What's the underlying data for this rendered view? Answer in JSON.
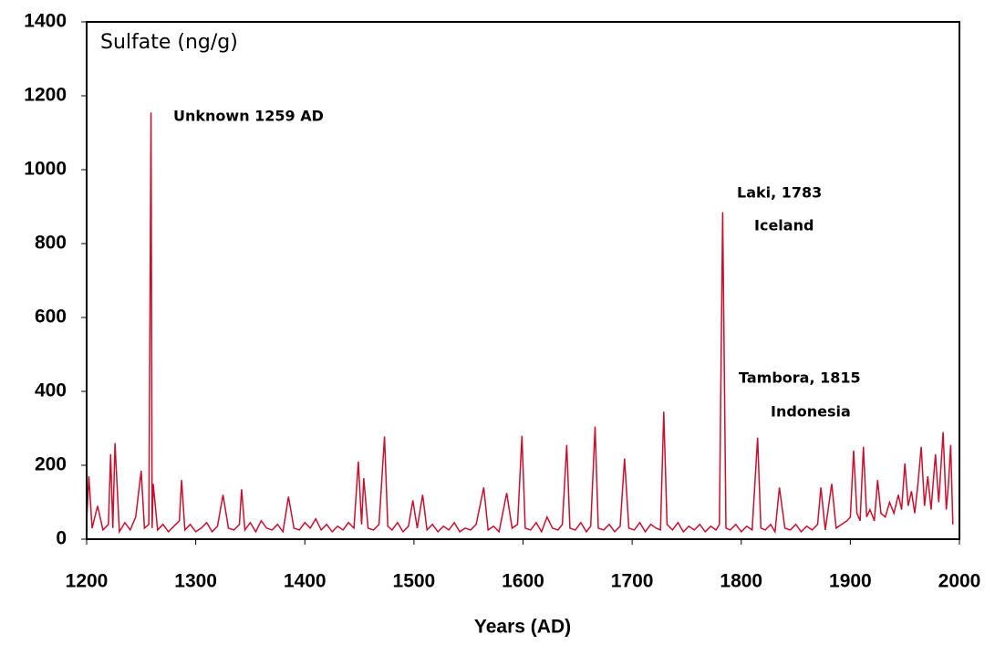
{
  "chart_data": {
    "type": "line",
    "x_label": "Years (AD)",
    "y_label": "Sulfate (ng/g)",
    "annotations": [
      "Unknown 1259 AD",
      "Laki, 1783",
      "Iceland",
      "Tambora, 1815",
      "Indonesia"
    ],
    "xlim": [
      1200,
      2000
    ],
    "xticks": [
      1200,
      1300,
      1400,
      1500,
      1600,
      1700,
      1800,
      1900,
      2000
    ],
    "ylim": [
      0,
      1400
    ],
    "yticks": [
      0,
      200,
      400,
      600,
      800,
      1000,
      1200,
      1400
    ],
    "grid": false,
    "x": [
      1200,
      1202,
      1205,
      1210,
      1215,
      1220,
      1222,
      1224,
      1226,
      1230,
      1235,
      1240,
      1245,
      1250,
      1253,
      1257,
      1259,
      1260,
      1261,
      1265,
      1270,
      1275,
      1280,
      1285,
      1287,
      1290,
      1295,
      1300,
      1305,
      1310,
      1315,
      1320,
      1325,
      1330,
      1335,
      1340,
      1342,
      1345,
      1350,
      1355,
      1360,
      1365,
      1370,
      1375,
      1380,
      1385,
      1390,
      1395,
      1400,
      1405,
      1410,
      1415,
      1420,
      1425,
      1430,
      1435,
      1440,
      1445,
      1449,
      1452,
      1454,
      1458,
      1463,
      1468,
      1473,
      1476,
      1480,
      1485,
      1490,
      1495,
      1499,
      1503,
      1508,
      1512,
      1517,
      1522,
      1527,
      1532,
      1537,
      1542,
      1547,
      1552,
      1557,
      1564,
      1568,
      1573,
      1578,
      1585,
      1590,
      1595,
      1599,
      1602,
      1607,
      1612,
      1617,
      1622,
      1627,
      1632,
      1636,
      1640,
      1643,
      1648,
      1653,
      1658,
      1662,
      1666,
      1669,
      1674,
      1679,
      1684,
      1689,
      1693,
      1697,
      1702,
      1707,
      1712,
      1717,
      1722,
      1726,
      1729,
      1732,
      1737,
      1742,
      1747,
      1752,
      1757,
      1762,
      1767,
      1772,
      1777,
      1780,
      1783,
      1786,
      1790,
      1795,
      1800,
      1805,
      1810,
      1815,
      1818,
      1822,
      1827,
      1831,
      1835,
      1840,
      1845,
      1850,
      1855,
      1860,
      1865,
      1870,
      1873,
      1877,
      1883,
      1887,
      1892,
      1897,
      1900,
      1903,
      1906,
      1909,
      1912,
      1915,
      1918,
      1922,
      1925,
      1928,
      1932,
      1936,
      1940,
      1944,
      1947,
      1950,
      1953,
      1956,
      1959,
      1962,
      1965,
      1968,
      1971,
      1974,
      1978,
      1981,
      1985,
      1988,
      1990,
      1992,
      1994
    ],
    "series": [
      {
        "name": "Sulfate",
        "color": "#c8102e",
        "values": [
          50,
          170,
          30,
          90,
          25,
          40,
          230,
          30,
          260,
          20,
          45,
          25,
          60,
          185,
          30,
          40,
          1155,
          30,
          150,
          25,
          40,
          20,
          35,
          50,
          160,
          25,
          40,
          20,
          30,
          45,
          20,
          35,
          120,
          30,
          25,
          40,
          135,
          25,
          45,
          20,
          50,
          30,
          25,
          40,
          20,
          115,
          30,
          25,
          45,
          30,
          55,
          25,
          40,
          20,
          35,
          25,
          45,
          30,
          210,
          40,
          165,
          30,
          25,
          40,
          278,
          35,
          25,
          45,
          20,
          35,
          105,
          30,
          120,
          25,
          40,
          20,
          35,
          25,
          45,
          20,
          30,
          25,
          40,
          140,
          25,
          35,
          20,
          125,
          30,
          40,
          280,
          30,
          25,
          45,
          20,
          60,
          30,
          25,
          40,
          255,
          30,
          25,
          45,
          20,
          35,
          305,
          30,
          25,
          40,
          20,
          35,
          218,
          30,
          25,
          45,
          20,
          40,
          30,
          25,
          345,
          40,
          25,
          45,
          20,
          35,
          25,
          40,
          20,
          35,
          25,
          40,
          885,
          30,
          25,
          40,
          20,
          35,
          25,
          275,
          30,
          25,
          40,
          20,
          140,
          30,
          25,
          40,
          20,
          35,
          25,
          40,
          140,
          25,
          150,
          30,
          40,
          50,
          60,
          240,
          70,
          50,
          250,
          60,
          80,
          50,
          160,
          70,
          60,
          100,
          70,
          120,
          80,
          205,
          90,
          130,
          70,
          150,
          250,
          90,
          170,
          80,
          230,
          100,
          290,
          80,
          150,
          255,
          40
        ]
      }
    ]
  }
}
